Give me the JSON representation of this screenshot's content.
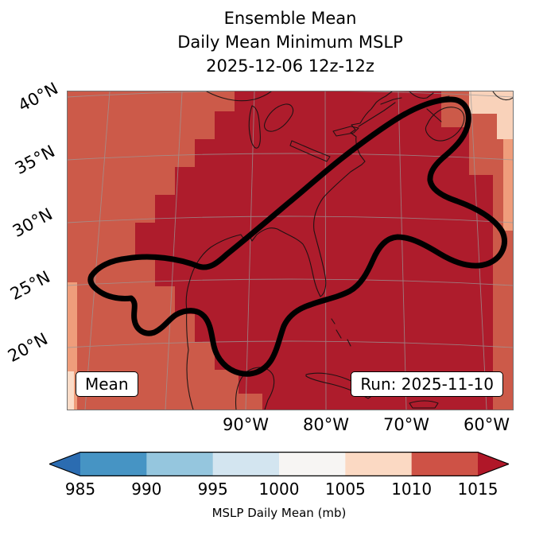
{
  "title": {
    "line1": "Ensemble Mean",
    "line2": "Daily Mean Minimum MSLP",
    "line3": "2025-12-06 12z-12z"
  },
  "map": {
    "mean_label": "Mean",
    "run_label": "Run: 2025-11-10",
    "lat_ticks": [
      "40°N",
      "35°N",
      "30°N",
      "25°N",
      "20°N"
    ],
    "lon_ticks": [
      "90°W",
      "80°W",
      "70°W",
      "60°W"
    ]
  },
  "map_colors": {
    "base": "#cc5a49",
    "dark": "#ae1c2c",
    "light_pink": "#f9d2ba",
    "salmon": "#ef9d7b",
    "pale_corner": "#fbdcc8"
  },
  "colorbar": {
    "label": "MSLP Daily Mean (mb)",
    "ticks": [
      "985",
      "990",
      "995",
      "1000",
      "1005",
      "1010",
      "1015"
    ],
    "segment_colors": [
      "#4694c4",
      "#95c6de",
      "#d3e5f0",
      "#f7f5f3",
      "#fbd9c3",
      "#ce5246"
    ],
    "extend_low_color": "#2b6cb1",
    "extend_high_color": "#b01728"
  },
  "chart_data": {
    "type": "heatmap",
    "subtype": "filled_contour_map",
    "title": "Ensemble Mean",
    "subtitle": "Daily Mean Minimum MSLP",
    "valid_time": "2025-12-06 12z-12z",
    "run_label": "Run: 2025-11-10",
    "statistic_label": "Mean",
    "colorbar_label": "MSLP Daily Mean (mb)",
    "colorbar_levels": [
      985,
      990,
      995,
      1000,
      1005,
      1010,
      1015
    ],
    "colorbar_extend": "both",
    "lat_ticks_deg_n": [
      40,
      35,
      30,
      25,
      20
    ],
    "lon_ticks_deg_w": [
      90,
      80,
      70,
      60
    ],
    "field_reading": [
      {
        "region": "central/eastern North America and western Atlantic (dark red core)",
        "value_mb": "> 1015"
      },
      {
        "region": "surrounding band over Gulf of Mexico, Canada, open Atlantic (medium red)",
        "value_mb": "1010-1015"
      },
      {
        "region": "far northeast corner and southwest/left edge (light pink)",
        "value_mb": "1005-1010"
      }
    ],
    "overlay": "thick black closed contour spanning from the western Gulf of Mexico northeast along the US East Coast to Nova Scotia, with a circular lobe over the eastern Gulf and an eastward bulge over the Atlantic",
    "legend_position": "bottom horizontal colorbar with triangular extend arrows"
  }
}
